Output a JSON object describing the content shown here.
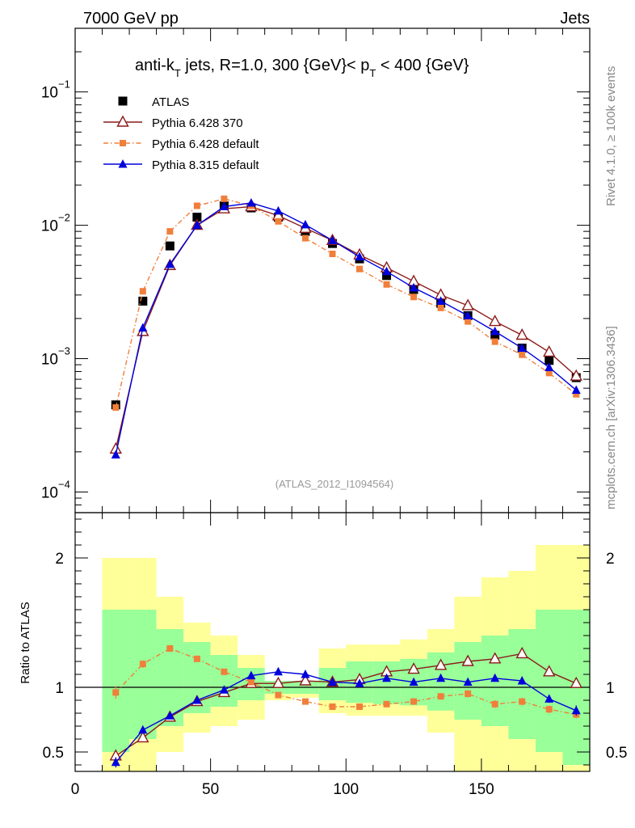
{
  "header": {
    "left": "7000 GeV pp",
    "right": "Jets"
  },
  "side_labels": {
    "rivet": "Rivet 4.1.0, ≥ 100k events",
    "mcplots": "mcplots.cern.ch [arXiv:1306.3436]"
  },
  "chart_data": [
    {
      "panel": "main",
      "type": "line",
      "yscale": "log",
      "title_parts": {
        "a": "anti-k",
        "a_sub": "T",
        "b": " jets, R=1.0, 300 {GeV}< p",
        "b_sub": "T",
        "c": " < 400 {GeV}"
      },
      "watermark": "(ATLAS_2012_I1094564)",
      "xlim": [
        0,
        190
      ],
      "ylim": [
        7e-05,
        0.3
      ],
      "xticks": [
        0,
        50,
        100,
        150
      ],
      "ytick_labels": [
        {
          "value": 0.1,
          "base": "10",
          "exp": "−1"
        },
        {
          "value": 0.01,
          "base": "10",
          "exp": "−2"
        },
        {
          "value": 0.001,
          "base": "10",
          "exp": "−3"
        },
        {
          "value": 0.0001,
          "base": "10",
          "exp": "−4"
        }
      ],
      "x": [
        15,
        25,
        35,
        45,
        55,
        65,
        75,
        85,
        95,
        105,
        115,
        125,
        135,
        145,
        155,
        165,
        175,
        185
      ],
      "series": [
        {
          "name": "ATLAS",
          "marker": "square",
          "color": "#000000",
          "values": [
            0.00045,
            0.0027,
            0.007,
            0.0115,
            0.014,
            0.0135,
            0.0115,
            0.009,
            0.0073,
            0.0056,
            0.0042,
            0.0033,
            0.0026,
            0.0021,
            0.0015,
            0.0012,
            0.00097,
            0.00072
          ]
        },
        {
          "name": "Pythia 6.428 370",
          "marker": "open-triangle",
          "color": "#8b1a1a",
          "values": [
            0.00021,
            0.0016,
            0.005,
            0.01,
            0.0133,
            0.0138,
            0.0118,
            0.0095,
            0.0077,
            0.006,
            0.0048,
            0.0038,
            0.003,
            0.0025,
            0.0019,
            0.0015,
            0.00112,
            0.00074
          ]
        },
        {
          "name": "Pythia 6.428 default",
          "marker": "small-square",
          "color": "#f07f3b",
          "dash": true,
          "values": [
            0.00043,
            0.0032,
            0.009,
            0.014,
            0.0158,
            0.014,
            0.0107,
            0.008,
            0.0061,
            0.0047,
            0.0036,
            0.0029,
            0.0024,
            0.0019,
            0.00134,
            0.00107,
            0.00078,
            0.00054
          ]
        },
        {
          "name": "Pythia 8.315 default",
          "marker": "triangle",
          "color": "#0000dd",
          "values": [
            0.00019,
            0.0017,
            0.0051,
            0.01,
            0.0138,
            0.0147,
            0.0128,
            0.0101,
            0.0077,
            0.0058,
            0.0045,
            0.0034,
            0.0027,
            0.0021,
            0.0016,
            0.0012,
            0.00086,
            0.00058
          ]
        }
      ]
    },
    {
      "panel": "ratio",
      "type": "line",
      "ylabel": "Ratio to ATLAS",
      "xlim": [
        0,
        190
      ],
      "ylim": [
        0.35,
        2.35
      ],
      "xticks": [
        0,
        50,
        100,
        150
      ],
      "xtick_labels": [
        "0",
        "50",
        "100",
        "150"
      ],
      "yticks": [
        0.5,
        1,
        2
      ],
      "ytick_labels": [
        "0.5",
        "1",
        "2"
      ],
      "bins": [
        [
          10,
          20
        ],
        [
          20,
          30
        ],
        [
          30,
          40
        ],
        [
          40,
          50
        ],
        [
          50,
          60
        ],
        [
          60,
          70
        ],
        [
          70,
          80
        ],
        [
          80,
          90
        ],
        [
          90,
          100
        ],
        [
          100,
          110
        ],
        [
          110,
          120
        ],
        [
          120,
          130
        ],
        [
          130,
          140
        ],
        [
          140,
          150
        ],
        [
          150,
          160
        ],
        [
          160,
          170
        ],
        [
          170,
          180
        ],
        [
          180,
          190
        ]
      ],
      "band_outer": [
        [
          0.35,
          2.0
        ],
        [
          0.35,
          2.0
        ],
        [
          0.5,
          1.7
        ],
        [
          0.65,
          1.5
        ],
        [
          0.7,
          1.4
        ],
        [
          0.75,
          1.25
        ],
        [
          0.9,
          1.0
        ],
        [
          0.92,
          1.03
        ],
        [
          0.8,
          1.3
        ],
        [
          0.78,
          1.33
        ],
        [
          0.78,
          1.33
        ],
        [
          0.78,
          1.37
        ],
        [
          0.65,
          1.45
        ],
        [
          0.35,
          1.7
        ],
        [
          0.35,
          1.85
        ],
        [
          0.35,
          1.9
        ],
        [
          0.35,
          2.1
        ],
        [
          0.35,
          2.1
        ]
      ],
      "band_inner": [
        [
          0.5,
          1.6
        ],
        [
          0.6,
          1.6
        ],
        [
          0.7,
          1.45
        ],
        [
          0.8,
          1.35
        ],
        [
          0.85,
          1.25
        ],
        [
          0.9,
          1.15
        ],
        [
          0.95,
          1.05
        ],
        [
          0.95,
          1.05
        ],
        [
          0.9,
          1.15
        ],
        [
          0.88,
          1.2
        ],
        [
          0.87,
          1.2
        ],
        [
          0.86,
          1.22
        ],
        [
          0.82,
          1.27
        ],
        [
          0.75,
          1.35
        ],
        [
          0.7,
          1.4
        ],
        [
          0.6,
          1.45
        ],
        [
          0.5,
          1.6
        ],
        [
          0.4,
          1.6
        ]
      ],
      "x": [
        15,
        25,
        35,
        45,
        55,
        65,
        75,
        85,
        95,
        105,
        115,
        125,
        135,
        145,
        155,
        165,
        175,
        185
      ],
      "series": [
        {
          "name": "Pythia 6.428 370",
          "marker": "open-triangle",
          "color": "#8b1a1a",
          "values": [
            0.47,
            0.61,
            0.77,
            0.89,
            0.96,
            1.03,
            1.03,
            1.05,
            1.04,
            1.06,
            1.12,
            1.14,
            1.17,
            1.2,
            1.22,
            1.26,
            1.12,
            1.03
          ]
        },
        {
          "name": "Pythia 6.428 default",
          "marker": "small-square",
          "color": "#f07f3b",
          "dash": true,
          "values": [
            0.96,
            1.18,
            1.3,
            1.22,
            1.12,
            1.04,
            0.94,
            0.89,
            0.85,
            0.85,
            0.87,
            0.89,
            0.93,
            0.95,
            0.87,
            0.89,
            0.83,
            0.79
          ],
          "err": [
            0.05,
            0.03,
            0.02,
            0.02,
            0.02,
            0.02,
            0.02,
            0.02,
            0.02,
            0.02,
            0.02,
            0.02,
            0.02,
            0.03,
            0.03,
            0.03,
            0.03,
            0.03
          ]
        },
        {
          "name": "Pythia 8.315 default",
          "marker": "triangle",
          "color": "#0000dd",
          "values": [
            0.42,
            0.67,
            0.78,
            0.9,
            0.98,
            1.09,
            1.12,
            1.1,
            1.04,
            1.03,
            1.07,
            1.04,
            1.07,
            1.04,
            1.07,
            1.05,
            0.91,
            0.82
          ],
          "err": [
            0.04,
            0.02,
            0.02,
            0.02,
            0.02,
            0.02,
            0.02,
            0.02,
            0.02,
            0.02,
            0.02,
            0.02,
            0.02,
            0.02,
            0.02,
            0.03,
            0.03,
            0.04
          ]
        }
      ]
    }
  ]
}
